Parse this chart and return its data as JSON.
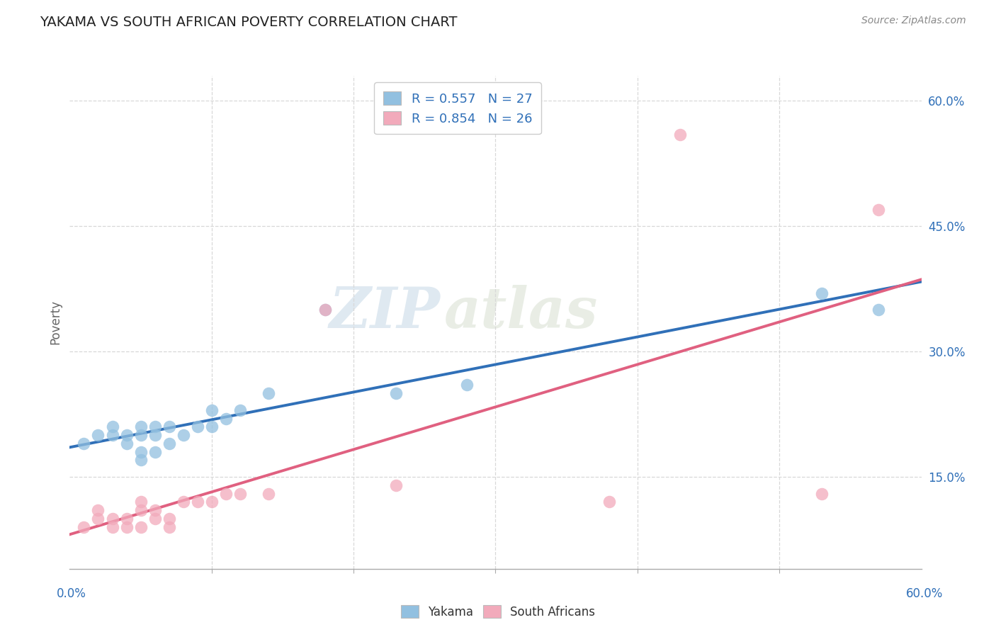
{
  "title": "YAKAMA VS SOUTH AFRICAN POVERTY CORRELATION CHART",
  "source": "Source: ZipAtlas.com",
  "ylabel": "Poverty",
  "xmin": 0.0,
  "xmax": 0.6,
  "ymin": 0.04,
  "ymax": 0.63,
  "ytick_vals": [
    0.15,
    0.3,
    0.45,
    0.6
  ],
  "ytick_labels": [
    "15.0%",
    "30.0%",
    "45.0%",
    "60.0%"
  ],
  "legend_r1": "R = 0.557   N = 27",
  "legend_r2": "R = 0.854   N = 26",
  "blue_scatter_color": "#92c0e0",
  "pink_scatter_color": "#f2aabb",
  "blue_line_color": "#3070b8",
  "pink_line_color": "#e06080",
  "background_color": "#ffffff",
  "watermark_top": "ZIP",
  "watermark_bot": "atlas",
  "grid_color": "#d8d8d8",
  "yakama_x": [
    0.01,
    0.02,
    0.03,
    0.03,
    0.04,
    0.04,
    0.05,
    0.05,
    0.05,
    0.05,
    0.06,
    0.06,
    0.06,
    0.07,
    0.07,
    0.08,
    0.09,
    0.1,
    0.1,
    0.11,
    0.12,
    0.14,
    0.18,
    0.23,
    0.28,
    0.53,
    0.57
  ],
  "yakama_y": [
    0.19,
    0.2,
    0.2,
    0.21,
    0.19,
    0.2,
    0.17,
    0.18,
    0.2,
    0.21,
    0.18,
    0.2,
    0.21,
    0.19,
    0.21,
    0.2,
    0.21,
    0.21,
    0.23,
    0.22,
    0.23,
    0.25,
    0.35,
    0.25,
    0.26,
    0.37,
    0.35
  ],
  "sa_x": [
    0.01,
    0.02,
    0.02,
    0.03,
    0.03,
    0.04,
    0.04,
    0.05,
    0.05,
    0.05,
    0.06,
    0.06,
    0.07,
    0.07,
    0.08,
    0.09,
    0.1,
    0.11,
    0.12,
    0.14,
    0.18,
    0.23,
    0.38,
    0.43,
    0.53,
    0.57
  ],
  "sa_y": [
    0.09,
    0.1,
    0.11,
    0.09,
    0.1,
    0.09,
    0.1,
    0.09,
    0.11,
    0.12,
    0.1,
    0.11,
    0.09,
    0.1,
    0.12,
    0.12,
    0.12,
    0.13,
    0.13,
    0.13,
    0.35,
    0.14,
    0.12,
    0.56,
    0.13,
    0.47
  ]
}
